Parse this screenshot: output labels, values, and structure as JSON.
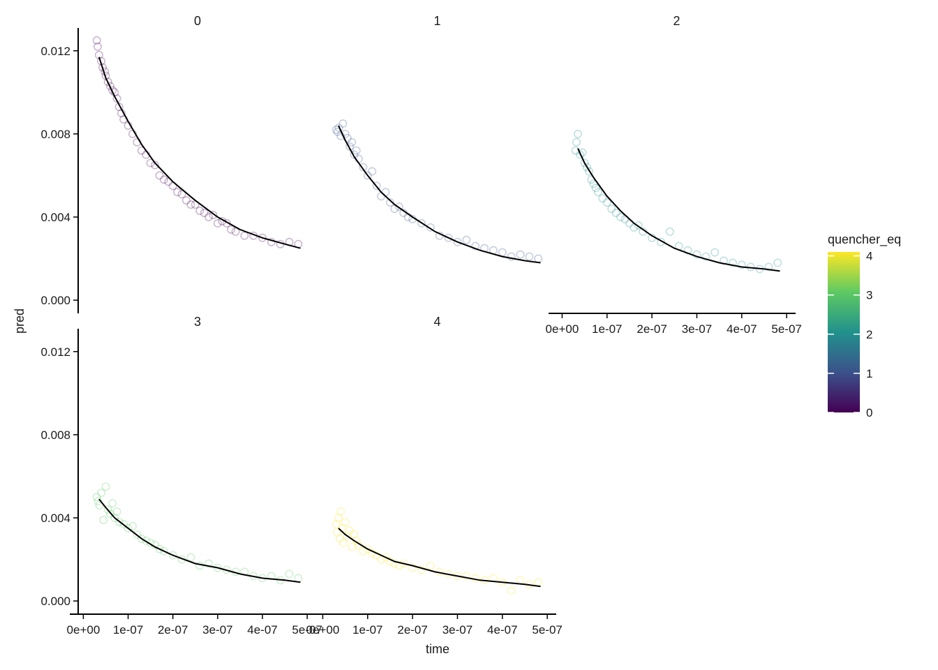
{
  "chart_data": {
    "type": "scatter",
    "xlabel": "time",
    "ylabel": "pred",
    "facet_by": "quencher_eq",
    "facets": [
      "0",
      "1",
      "2",
      "3",
      "4"
    ],
    "x_ticks": [
      0,
      1e-07,
      2e-07,
      3e-07,
      4e-07,
      5e-07
    ],
    "x_tick_labels": [
      "0e+00",
      "1e-07",
      "2e-07",
      "3e-07",
      "4e-07",
      "5e-07"
    ],
    "xlim": [
      -1e-08,
      5.2e-07
    ],
    "y_ticks": [
      0,
      0.004,
      0.008,
      0.012
    ],
    "y_tick_labels": [
      "0.000",
      "0.004",
      "0.008",
      "0.012"
    ],
    "ylim": [
      -0.0005,
      0.0131
    ],
    "legend": {
      "title": "quencher_eq",
      "range": [
        0,
        4.1
      ],
      "ticks": [
        0,
        1,
        2,
        3,
        4
      ],
      "tick_labels": [
        "0",
        "1",
        "2",
        "3",
        "4"
      ],
      "placement": "right",
      "stops": [
        "#440154",
        "#3b528b",
        "#21918c",
        "#5ec962",
        "#fde725"
      ]
    },
    "grid": false,
    "series": [
      {
        "panel": "0",
        "quencher_eq": 0,
        "color": "#440154",
        "fit_line": {
          "x": [
            3.5e-08,
            5e-08,
            7e-08,
            1e-07,
            1.3e-07,
            1.6e-07,
            2e-07,
            2.5e-07,
            3e-07,
            3.5e-07,
            4e-07,
            4.5e-07,
            4.85e-07
          ],
          "y": [
            0.0117,
            0.0107,
            0.0098,
            0.0086,
            0.0075,
            0.0066,
            0.0057,
            0.0048,
            0.004,
            0.0034,
            0.003,
            0.0027,
            0.0025
          ]
        },
        "points": {
          "x": [
            3e-08,
            3.2e-08,
            3.5e-08,
            4e-08,
            4.3e-08,
            4.8e-08,
            5e-08,
            5.5e-08,
            6e-08,
            6.5e-08,
            7e-08,
            7.5e-08,
            8e-08,
            8.5e-08,
            9e-08,
            1e-07,
            1.1e-07,
            1.2e-07,
            1.3e-07,
            1.4e-07,
            1.5e-07,
            1.6e-07,
            1.7e-07,
            1.8e-07,
            1.9e-07,
            2e-07,
            2.1e-07,
            2.2e-07,
            2.3e-07,
            2.4e-07,
            2.5e-07,
            2.6e-07,
            2.7e-07,
            2.8e-07,
            2.9e-07,
            3e-07,
            3.1e-07,
            3.2e-07,
            3.3e-07,
            3.4e-07,
            3.6e-07,
            3.8e-07,
            4e-07,
            4.2e-07,
            4.4e-07,
            4.6e-07,
            4.8e-07
          ],
          "y": [
            0.0125,
            0.0122,
            0.0118,
            0.0115,
            0.0112,
            0.011,
            0.0108,
            0.0105,
            0.0103,
            0.0101,
            0.01,
            0.0097,
            0.0093,
            0.009,
            0.0087,
            0.0084,
            0.008,
            0.0076,
            0.0072,
            0.007,
            0.0066,
            0.0065,
            0.006,
            0.0058,
            0.0057,
            0.0055,
            0.0052,
            0.0051,
            0.0048,
            0.0046,
            0.0046,
            0.0043,
            0.0042,
            0.004,
            0.0041,
            0.0037,
            0.0038,
            0.0037,
            0.0034,
            0.0033,
            0.0031,
            0.0031,
            0.003,
            0.0028,
            0.0027,
            0.0028,
            0.0027
          ]
        }
      },
      {
        "panel": "1",
        "quencher_eq": 1,
        "color": "#3b528b",
        "fit_line": {
          "x": [
            3.5e-08,
            5e-08,
            7e-08,
            1e-07,
            1.3e-07,
            1.6e-07,
            2e-07,
            2.5e-07,
            3e-07,
            3.5e-07,
            4e-07,
            4.5e-07,
            4.85e-07
          ],
          "y": [
            0.0084,
            0.0077,
            0.0069,
            0.006,
            0.0052,
            0.0046,
            0.004,
            0.0033,
            0.0028,
            0.0024,
            0.0021,
            0.0019,
            0.0018
          ]
        },
        "points": {
          "x": [
            3e-08,
            3.3e-08,
            3.6e-08,
            4e-08,
            4.5e-08,
            5e-08,
            5.5e-08,
            6e-08,
            6.5e-08,
            7e-08,
            7.5e-08,
            8e-08,
            9e-08,
            1e-07,
            1.1e-07,
            1.2e-07,
            1.3e-07,
            1.4e-07,
            1.5e-07,
            1.6e-07,
            1.7e-07,
            1.8e-07,
            1.9e-07,
            2e-07,
            2.2e-07,
            2.4e-07,
            2.6e-07,
            2.8e-07,
            3e-07,
            3.2e-07,
            3.4e-07,
            3.6e-07,
            3.8e-07,
            4e-07,
            4.2e-07,
            4.4e-07,
            4.6e-07,
            4.8e-07
          ],
          "y": [
            0.0082,
            0.0081,
            0.0083,
            0.0079,
            0.0085,
            0.008,
            0.0078,
            0.0074,
            0.0076,
            0.007,
            0.0072,
            0.0068,
            0.0064,
            0.006,
            0.0062,
            0.0055,
            0.005,
            0.0052,
            0.0047,
            0.0044,
            0.0045,
            0.0042,
            0.004,
            0.0039,
            0.0037,
            0.0035,
            0.0031,
            0.003,
            0.0028,
            0.0029,
            0.0026,
            0.0025,
            0.0024,
            0.0023,
            0.0021,
            0.0022,
            0.0021,
            0.002
          ]
        }
      },
      {
        "panel": "2",
        "quencher_eq": 2,
        "color": "#21918c",
        "fit_line": {
          "x": [
            3.5e-08,
            5e-08,
            7e-08,
            1e-07,
            1.3e-07,
            1.6e-07,
            2e-07,
            2.5e-07,
            3e-07,
            3.5e-07,
            4e-07,
            4.5e-07,
            4.85e-07
          ],
          "y": [
            0.0073,
            0.0066,
            0.0059,
            0.005,
            0.0043,
            0.0037,
            0.0031,
            0.0025,
            0.0021,
            0.0018,
            0.0016,
            0.0015,
            0.0014
          ]
        },
        "points": {
          "x": [
            3e-08,
            3.2e-08,
            3.5e-08,
            4e-08,
            4.5e-08,
            5e-08,
            5.5e-08,
            6e-08,
            6.5e-08,
            7e-08,
            7.5e-08,
            8e-08,
            9e-08,
            1e-07,
            1.1e-07,
            1.2e-07,
            1.3e-07,
            1.4e-07,
            1.5e-07,
            1.6e-07,
            1.7e-07,
            1.8e-07,
            2e-07,
            2.2e-07,
            2.4e-07,
            2.6e-07,
            2.8e-07,
            3e-07,
            3.2e-07,
            3.4e-07,
            3.6e-07,
            3.8e-07,
            4e-07,
            4.2e-07,
            4.4e-07,
            4.6e-07,
            4.8e-07
          ],
          "y": [
            0.0072,
            0.0076,
            0.008,
            0.007,
            0.0071,
            0.0066,
            0.0064,
            0.0062,
            0.0058,
            0.0056,
            0.0054,
            0.0052,
            0.0049,
            0.0047,
            0.0044,
            0.0042,
            0.004,
            0.0039,
            0.0037,
            0.0035,
            0.0036,
            0.0033,
            0.003,
            0.0028,
            0.0033,
            0.0026,
            0.0024,
            0.0022,
            0.0021,
            0.0023,
            0.0019,
            0.0018,
            0.0017,
            0.0016,
            0.0015,
            0.0016,
            0.0018
          ]
        }
      },
      {
        "panel": "3",
        "quencher_eq": 3,
        "color": "#5ec962",
        "fit_line": {
          "x": [
            3.5e-08,
            5e-08,
            7e-08,
            1e-07,
            1.3e-07,
            1.6e-07,
            2e-07,
            2.5e-07,
            3e-07,
            3.5e-07,
            4e-07,
            4.5e-07,
            4.85e-07
          ],
          "y": [
            0.0049,
            0.0045,
            0.004,
            0.0035,
            0.003,
            0.0026,
            0.0022,
            0.0018,
            0.0016,
            0.0013,
            0.0011,
            0.001,
            0.0009
          ]
        },
        "points": {
          "x": [
            3e-08,
            3.3e-08,
            3.6e-08,
            4e-08,
            4.5e-08,
            5e-08,
            5.5e-08,
            6e-08,
            6.5e-08,
            7e-08,
            7.5e-08,
            8e-08,
            9e-08,
            1e-07,
            1.1e-07,
            1.2e-07,
            1.3e-07,
            1.4e-07,
            1.5e-07,
            1.6e-07,
            1.7e-07,
            1.8e-07,
            2e-07,
            2.2e-07,
            2.4e-07,
            2.6e-07,
            2.8e-07,
            3e-07,
            3.2e-07,
            3.4e-07,
            3.6e-07,
            3.8e-07,
            4e-07,
            4.2e-07,
            4.4e-07,
            4.6e-07,
            4.8e-07
          ],
          "y": [
            0.005,
            0.0048,
            0.0046,
            0.0052,
            0.0039,
            0.0055,
            0.0044,
            0.0042,
            0.0047,
            0.004,
            0.0043,
            0.0038,
            0.0037,
            0.0035,
            0.0036,
            0.0032,
            0.003,
            0.0029,
            0.0028,
            0.0027,
            0.0025,
            0.0024,
            0.0022,
            0.002,
            0.0021,
            0.0017,
            0.0018,
            0.0016,
            0.0015,
            0.0014,
            0.0014,
            0.0012,
            0.0011,
            0.0012,
            0.001,
            0.0013,
            0.0011
          ]
        }
      },
      {
        "panel": "4",
        "quencher_eq": 4,
        "color": "#fde725",
        "fit_line": {
          "x": [
            3.5e-08,
            5e-08,
            7e-08,
            1e-07,
            1.3e-07,
            1.6e-07,
            2e-07,
            2.5e-07,
            3e-07,
            3.5e-07,
            4e-07,
            4.5e-07,
            4.85e-07
          ],
          "y": [
            0.0035,
            0.0032,
            0.0029,
            0.0025,
            0.0022,
            0.0019,
            0.0017,
            0.0014,
            0.0012,
            0.001,
            0.0009,
            0.0008,
            0.0007
          ]
        },
        "points": {
          "x": [
            3e-08,
            3.2e-08,
            3.5e-08,
            3.8e-08,
            4e-08,
            4.3e-08,
            4.6e-08,
            5e-08,
            5.5e-08,
            6e-08,
            6.5e-08,
            7e-08,
            7.5e-08,
            8e-08,
            9e-08,
            1e-07,
            1.1e-07,
            1.2e-07,
            1.3e-07,
            1.4e-07,
            1.5e-07,
            1.6e-07,
            1.7e-07,
            1.8e-07,
            2e-07,
            2.2e-07,
            2.4e-07,
            2.6e-07,
            2.8e-07,
            3e-07,
            3.2e-07,
            3.4e-07,
            3.6e-07,
            3.8e-07,
            4e-07,
            4.2e-07,
            4.4e-07,
            4.6e-07,
            4.8e-07
          ],
          "y": [
            0.0037,
            0.0033,
            0.004,
            0.003,
            0.0043,
            0.0035,
            0.0028,
            0.0038,
            0.0031,
            0.0034,
            0.0026,
            0.0032,
            0.0029,
            0.0027,
            0.0024,
            0.0025,
            0.0023,
            0.0022,
            0.002,
            0.0021,
            0.0019,
            0.0018,
            0.0017,
            0.0018,
            0.0016,
            0.0015,
            0.0017,
            0.0014,
            0.0013,
            0.0012,
            0.0012,
            0.0011,
            0.001,
            0.0011,
            0.0009,
            0.0005,
            0.001,
            0.0008,
            0.0009
          ]
        }
      }
    ]
  }
}
